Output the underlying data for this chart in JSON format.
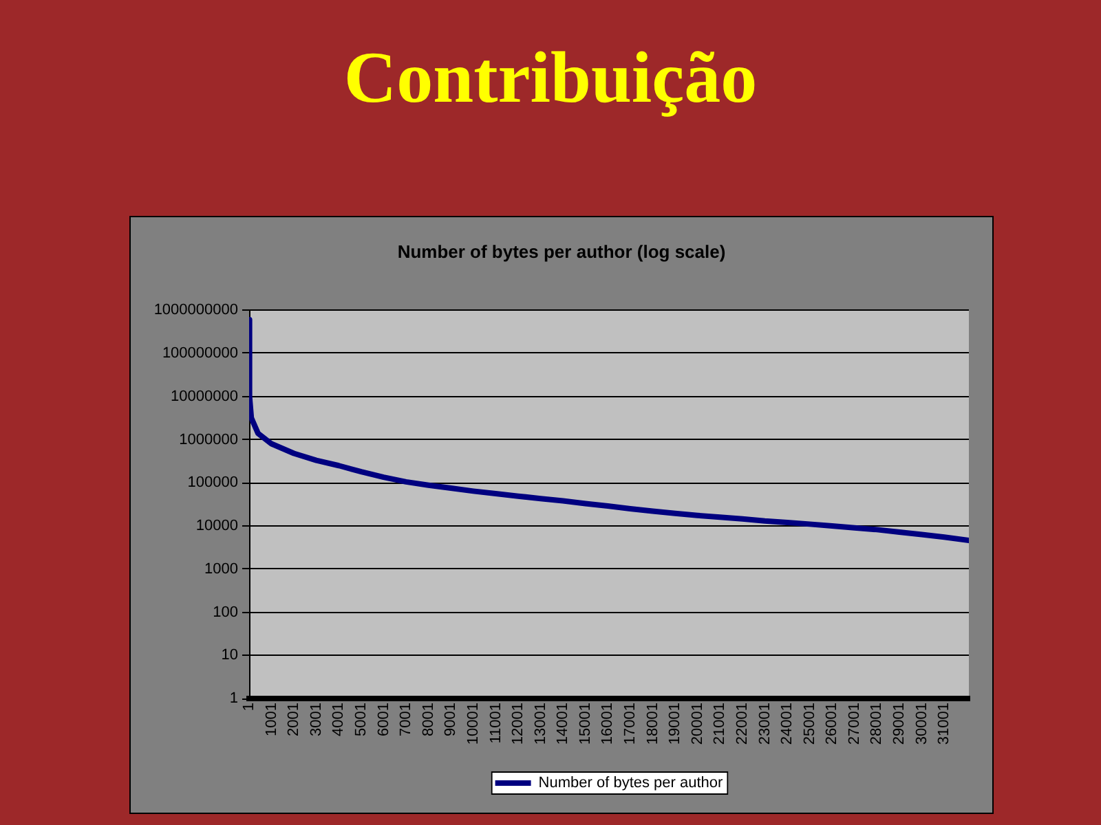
{
  "chart_data": {
    "type": "line",
    "title": "Contribuição",
    "subtitle": "Number of bytes per author (log scale)",
    "x": [
      1,
      20,
      100,
      400,
      1000,
      2000,
      3000,
      4000,
      5000,
      6000,
      7000,
      8000,
      9000,
      10000,
      11000,
      12000,
      13000,
      14000,
      15000,
      16000,
      17000,
      18000,
      19000,
      20000,
      21000,
      22000,
      23000,
      24000,
      25000,
      26000,
      27000,
      28000,
      29000,
      30000,
      31000,
      32100
    ],
    "series": [
      {
        "name": "Number of bytes per author",
        "color": "#000080",
        "values": [
          600000000,
          10000000,
          3200000,
          1400000,
          800000,
          480000,
          330000,
          250000,
          180000,
          135000,
          105000,
          88000,
          75000,
          64000,
          56000,
          49000,
          43000,
          38000,
          33000,
          29000,
          25000,
          22000,
          19500,
          17500,
          16000,
          14500,
          13000,
          12000,
          11000,
          10000,
          9000,
          8200,
          7200,
          6300,
          5500,
          4600
        ]
      }
    ],
    "xlim": [
      1,
      32100
    ],
    "xticks": [
      1,
      1001,
      2001,
      3001,
      4001,
      5001,
      6001,
      7001,
      8001,
      9001,
      10001,
      11001,
      12001,
      13001,
      14001,
      15001,
      16001,
      17001,
      18001,
      19001,
      20001,
      21001,
      22001,
      23001,
      24001,
      25001,
      26001,
      27001,
      28001,
      29001,
      30001,
      31001
    ],
    "ylim": [
      1,
      1000000000
    ],
    "yticks": [
      1,
      10,
      100,
      1000,
      10000,
      100000,
      1000000,
      10000000,
      100000000,
      1000000000
    ],
    "log": "y",
    "grid": "y",
    "legend": "bottom",
    "marker": "none",
    "line_style": "solid"
  }
}
